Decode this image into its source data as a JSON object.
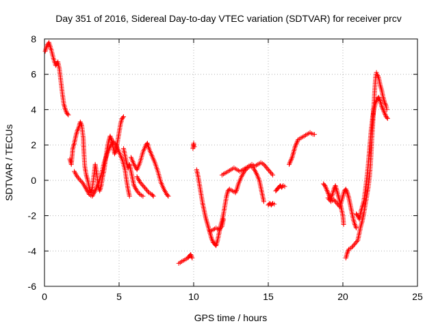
{
  "chart_data": {
    "type": "scatter",
    "title": "Day 351 of 2016, Sidereal Day-to-day VTEC variation (SDTVAR) for receiver prcv",
    "xlabel": "GPS time / hours",
    "ylabel": "SDTVAR / TECUs",
    "xlim": [
      0,
      25
    ],
    "ylim": [
      -6,
      8
    ],
    "xticks": [
      0,
      5,
      10,
      15,
      20,
      25
    ],
    "yticks": [
      -6,
      -4,
      -2,
      0,
      2,
      4,
      6,
      8
    ],
    "grid": true,
    "marker": "plus",
    "color": "#ff0000",
    "series": [
      {
        "name": "seg1",
        "points": [
          [
            0.05,
            7.3
          ],
          [
            0.15,
            7.6
          ],
          [
            0.3,
            7.8
          ],
          [
            0.45,
            7.4
          ],
          [
            0.6,
            6.9
          ],
          [
            0.75,
            6.5
          ],
          [
            0.9,
            6.7
          ],
          [
            1.0,
            6.3
          ],
          [
            1.1,
            5.6
          ],
          [
            1.2,
            4.9
          ],
          [
            1.3,
            4.3
          ],
          [
            1.4,
            4.0
          ],
          [
            1.5,
            3.8
          ],
          [
            1.6,
            3.7
          ]
        ]
      },
      {
        "name": "seg2",
        "points": [
          [
            1.7,
            1.2
          ],
          [
            1.8,
            0.9
          ],
          [
            1.9,
            1.8
          ],
          [
            2.0,
            2.1
          ],
          [
            2.1,
            2.5
          ],
          [
            2.2,
            2.8
          ],
          [
            2.3,
            3.0
          ],
          [
            2.4,
            3.3
          ],
          [
            2.5,
            3.1
          ],
          [
            2.6,
            2.4
          ],
          [
            2.65,
            1.5
          ],
          [
            2.7,
            0.8
          ],
          [
            2.8,
            0.3
          ],
          [
            2.9,
            0.0
          ],
          [
            3.0,
            -0.4
          ],
          [
            3.1,
            -0.7
          ],
          [
            3.2,
            -0.5
          ],
          [
            3.3,
            0.2
          ],
          [
            3.4,
            0.9
          ],
          [
            3.5,
            0.4
          ],
          [
            3.6,
            -0.3
          ],
          [
            3.7,
            -0.6
          ],
          [
            3.8,
            -0.3
          ],
          [
            3.9,
            0.2
          ],
          [
            4.0,
            0.6
          ],
          [
            4.1,
            1.2
          ],
          [
            4.2,
            1.8
          ],
          [
            4.3,
            2.2
          ],
          [
            4.4,
            2.5
          ],
          [
            4.5,
            2.3
          ],
          [
            4.6,
            1.9
          ],
          [
            4.7,
            1.5
          ],
          [
            4.8,
            1.7
          ],
          [
            4.9,
            2.2
          ],
          [
            5.0,
            2.7
          ],
          [
            5.1,
            3.2
          ],
          [
            5.2,
            3.5
          ],
          [
            5.3,
            3.6
          ]
        ]
      },
      {
        "name": "seg3",
        "points": [
          [
            2.0,
            0.5
          ],
          [
            2.2,
            0.2
          ],
          [
            2.4,
            0.0
          ],
          [
            2.6,
            -0.2
          ],
          [
            2.8,
            -0.5
          ],
          [
            3.0,
            -0.8
          ],
          [
            3.2,
            -0.9
          ],
          [
            3.4,
            -0.6
          ],
          [
            3.6,
            -0.2
          ],
          [
            3.8,
            0.3
          ],
          [
            4.0,
            1.0
          ],
          [
            4.2,
            1.5
          ],
          [
            4.4,
            1.9
          ],
          [
            4.6,
            2.2
          ],
          [
            4.8,
            2.0
          ],
          [
            5.0,
            1.6
          ],
          [
            5.2,
            1.2
          ],
          [
            5.4,
            0.6
          ],
          [
            5.5,
            0.0
          ],
          [
            5.6,
            -0.5
          ],
          [
            5.7,
            -0.9
          ]
        ]
      },
      {
        "name": "seg4",
        "points": [
          [
            5.3,
            1.8
          ],
          [
            5.4,
            1.4
          ],
          [
            5.5,
            1.0
          ],
          [
            5.6,
            0.7
          ],
          [
            5.7,
            0.9
          ],
          [
            5.8,
            0.5
          ],
          [
            5.9,
            0.1
          ],
          [
            6.0,
            -0.3
          ],
          [
            6.2,
            -0.6
          ],
          [
            6.4,
            -0.8
          ],
          [
            6.6,
            -0.9
          ]
        ]
      },
      {
        "name": "seg5",
        "points": [
          [
            5.8,
            1.3
          ],
          [
            6.0,
            0.9
          ],
          [
            6.2,
            0.6
          ],
          [
            6.4,
            1.0
          ],
          [
            6.6,
            1.6
          ],
          [
            6.8,
            2.0
          ],
          [
            6.9,
            2.1
          ],
          [
            7.0,
            1.8
          ],
          [
            7.2,
            1.4
          ],
          [
            7.4,
            1.0
          ],
          [
            7.6,
            0.5
          ],
          [
            7.8,
            -0.1
          ],
          [
            8.0,
            -0.5
          ],
          [
            8.2,
            -0.8
          ],
          [
            8.3,
            -0.9
          ]
        ]
      },
      {
        "name": "seg6",
        "points": [
          [
            6.2,
            0.2
          ],
          [
            6.4,
            -0.1
          ],
          [
            6.6,
            -0.3
          ],
          [
            6.8,
            -0.5
          ],
          [
            7.0,
            -0.7
          ],
          [
            7.2,
            -0.8
          ],
          [
            7.3,
            -0.9
          ]
        ]
      },
      {
        "name": "seg7",
        "points": [
          [
            9.0,
            -4.7
          ],
          [
            9.2,
            -4.6
          ],
          [
            9.4,
            -4.5
          ],
          [
            9.6,
            -4.4
          ],
          [
            9.7,
            -4.3
          ],
          [
            9.8,
            -4.2
          ],
          [
            9.9,
            -4.4
          ]
        ]
      },
      {
        "name": "seg8",
        "points": [
          [
            9.95,
            1.8
          ],
          [
            10.0,
            2.1
          ],
          [
            10.05,
            1.9
          ]
        ]
      },
      {
        "name": "seg9",
        "points": [
          [
            10.2,
            0.6
          ],
          [
            10.3,
            0.2
          ],
          [
            10.4,
            -0.3
          ],
          [
            10.5,
            -0.8
          ],
          [
            10.6,
            -1.3
          ],
          [
            10.7,
            -1.7
          ],
          [
            10.8,
            -2.1
          ],
          [
            10.9,
            -2.4
          ],
          [
            11.0,
            -2.7
          ],
          [
            11.1,
            -3.0
          ],
          [
            11.2,
            -3.3
          ],
          [
            11.3,
            -3.5
          ],
          [
            11.4,
            -3.6
          ],
          [
            11.5,
            -3.7
          ],
          [
            11.6,
            -3.4
          ],
          [
            11.7,
            -3.0
          ],
          [
            11.8,
            -2.6
          ],
          [
            11.9,
            -2.3
          ],
          [
            12.0,
            -1.9
          ],
          [
            12.1,
            -1.4
          ],
          [
            12.2,
            -0.9
          ],
          [
            12.3,
            -0.6
          ],
          [
            12.4,
            -0.5
          ],
          [
            12.6,
            -0.6
          ],
          [
            12.8,
            -0.7
          ],
          [
            12.9,
            -0.5
          ],
          [
            13.0,
            -0.2
          ],
          [
            13.2,
            0.2
          ],
          [
            13.4,
            0.5
          ],
          [
            13.6,
            0.7
          ],
          [
            13.8,
            0.8
          ],
          [
            14.0,
            0.7
          ],
          [
            14.2,
            0.4
          ],
          [
            14.4,
            0.0
          ],
          [
            14.5,
            -0.4
          ],
          [
            14.6,
            -0.8
          ],
          [
            14.7,
            -1.2
          ]
        ]
      },
      {
        "name": "seg10",
        "points": [
          [
            11.1,
            -2.9
          ],
          [
            11.3,
            -2.8
          ],
          [
            11.5,
            -2.7
          ],
          [
            11.7,
            -2.8
          ],
          [
            11.9,
            -2.6
          ],
          [
            12.0,
            -2.2
          ]
        ]
      },
      {
        "name": "seg11",
        "points": [
          [
            11.9,
            0.3
          ],
          [
            12.1,
            0.4
          ],
          [
            12.3,
            0.5
          ],
          [
            12.5,
            0.6
          ],
          [
            12.7,
            0.7
          ],
          [
            12.9,
            0.6
          ],
          [
            13.1,
            0.5
          ],
          [
            13.3,
            0.6
          ],
          [
            13.5,
            0.7
          ],
          [
            13.7,
            0.8
          ],
          [
            13.9,
            0.9
          ],
          [
            14.1,
            0.8
          ],
          [
            14.3,
            0.9
          ],
          [
            14.5,
            1.0
          ],
          [
            14.7,
            0.9
          ],
          [
            14.9,
            0.7
          ],
          [
            15.1,
            0.5
          ],
          [
            15.3,
            0.3
          ]
        ]
      },
      {
        "name": "seg12",
        "points": [
          [
            15.0,
            -1.4
          ],
          [
            15.1,
            -1.3
          ],
          [
            15.2,
            -1.4
          ],
          [
            15.3,
            -1.3
          ],
          [
            15.4,
            -1.35
          ]
        ]
      },
      {
        "name": "seg13",
        "points": [
          [
            15.5,
            -0.6
          ],
          [
            15.6,
            -0.5
          ],
          [
            15.7,
            -0.4
          ],
          [
            15.8,
            -0.3
          ],
          [
            15.9,
            -0.4
          ],
          [
            16.0,
            -0.3
          ],
          [
            16.1,
            -0.35
          ]
        ]
      },
      {
        "name": "seg14",
        "points": [
          [
            16.4,
            0.9
          ],
          [
            16.5,
            1.1
          ],
          [
            16.6,
            1.3
          ],
          [
            16.7,
            1.6
          ],
          [
            16.8,
            1.9
          ],
          [
            16.9,
            2.1
          ],
          [
            17.0,
            2.3
          ],
          [
            17.2,
            2.4
          ],
          [
            17.4,
            2.5
          ],
          [
            17.6,
            2.6
          ],
          [
            17.8,
            2.7
          ],
          [
            18.0,
            2.6
          ],
          [
            18.1,
            2.6
          ]
        ]
      },
      {
        "name": "seg15",
        "points": [
          [
            18.7,
            -0.2
          ],
          [
            18.8,
            -0.3
          ],
          [
            18.9,
            -0.5
          ],
          [
            19.0,
            -0.7
          ],
          [
            19.1,
            -0.9
          ],
          [
            19.2,
            -1.1
          ],
          [
            19.3,
            -0.8
          ],
          [
            19.4,
            -0.5
          ],
          [
            19.5,
            -0.3
          ],
          [
            19.6,
            -0.6
          ],
          [
            19.7,
            -0.9
          ],
          [
            19.8,
            -1.2
          ],
          [
            19.9,
            -1.6
          ],
          [
            20.0,
            -2.0
          ],
          [
            20.05,
            -2.5
          ]
        ]
      },
      {
        "name": "seg16",
        "points": [
          [
            19.0,
            -1.0
          ],
          [
            19.2,
            -1.2
          ],
          [
            19.4,
            -1.1
          ],
          [
            19.6,
            -1.3
          ],
          [
            19.8,
            -1.5
          ],
          [
            19.9,
            -1.2
          ],
          [
            20.0,
            -0.9
          ],
          [
            20.1,
            -0.6
          ],
          [
            20.2,
            -0.5
          ],
          [
            20.3,
            -0.7
          ],
          [
            20.4,
            -1.0
          ],
          [
            20.5,
            -1.4
          ],
          [
            20.6,
            -1.8
          ],
          [
            20.7,
            -2.2
          ],
          [
            20.8,
            -2.5
          ],
          [
            20.9,
            -2.7
          ]
        ]
      },
      {
        "name": "seg17",
        "points": [
          [
            20.2,
            -4.4
          ],
          [
            20.3,
            -4.1
          ],
          [
            20.4,
            -3.9
          ],
          [
            20.6,
            -3.8
          ],
          [
            20.8,
            -3.6
          ],
          [
            21.0,
            -3.4
          ],
          [
            21.1,
            -3.0
          ],
          [
            21.2,
            -2.6
          ],
          [
            21.3,
            -2.3
          ],
          [
            21.4,
            -1.9
          ],
          [
            21.5,
            -1.4
          ],
          [
            21.6,
            -0.9
          ],
          [
            21.7,
            -0.4
          ],
          [
            21.8,
            0.3
          ],
          [
            21.85,
            0.9
          ],
          [
            21.9,
            1.6
          ],
          [
            21.95,
            2.4
          ],
          [
            22.0,
            3.1
          ],
          [
            22.05,
            3.9
          ],
          [
            22.1,
            4.6
          ],
          [
            22.15,
            5.3
          ],
          [
            22.2,
            5.9
          ],
          [
            22.25,
            6.1
          ],
          [
            22.3,
            6.0
          ],
          [
            22.4,
            5.8
          ],
          [
            22.5,
            5.4
          ],
          [
            22.6,
            5.1
          ],
          [
            22.7,
            4.7
          ],
          [
            22.8,
            4.4
          ],
          [
            22.9,
            4.2
          ],
          [
            22.95,
            4.0
          ]
        ]
      },
      {
        "name": "seg18",
        "points": [
          [
            20.9,
            -1.9
          ],
          [
            21.0,
            -2.0
          ],
          [
            21.1,
            -2.2
          ],
          [
            21.2,
            -1.8
          ],
          [
            21.3,
            -1.5
          ],
          [
            21.4,
            -1.2
          ],
          [
            21.5,
            -0.6
          ],
          [
            21.6,
            0.1
          ],
          [
            21.7,
            0.9
          ],
          [
            21.8,
            1.9
          ],
          [
            21.9,
            2.9
          ],
          [
            22.0,
            3.6
          ],
          [
            22.1,
            4.1
          ],
          [
            22.2,
            4.4
          ],
          [
            22.3,
            4.6
          ],
          [
            22.4,
            4.7
          ],
          [
            22.5,
            4.5
          ],
          [
            22.6,
            4.2
          ],
          [
            22.7,
            4.0
          ],
          [
            22.8,
            3.8
          ],
          [
            22.9,
            3.6
          ],
          [
            23.0,
            3.5
          ]
        ]
      }
    ]
  }
}
